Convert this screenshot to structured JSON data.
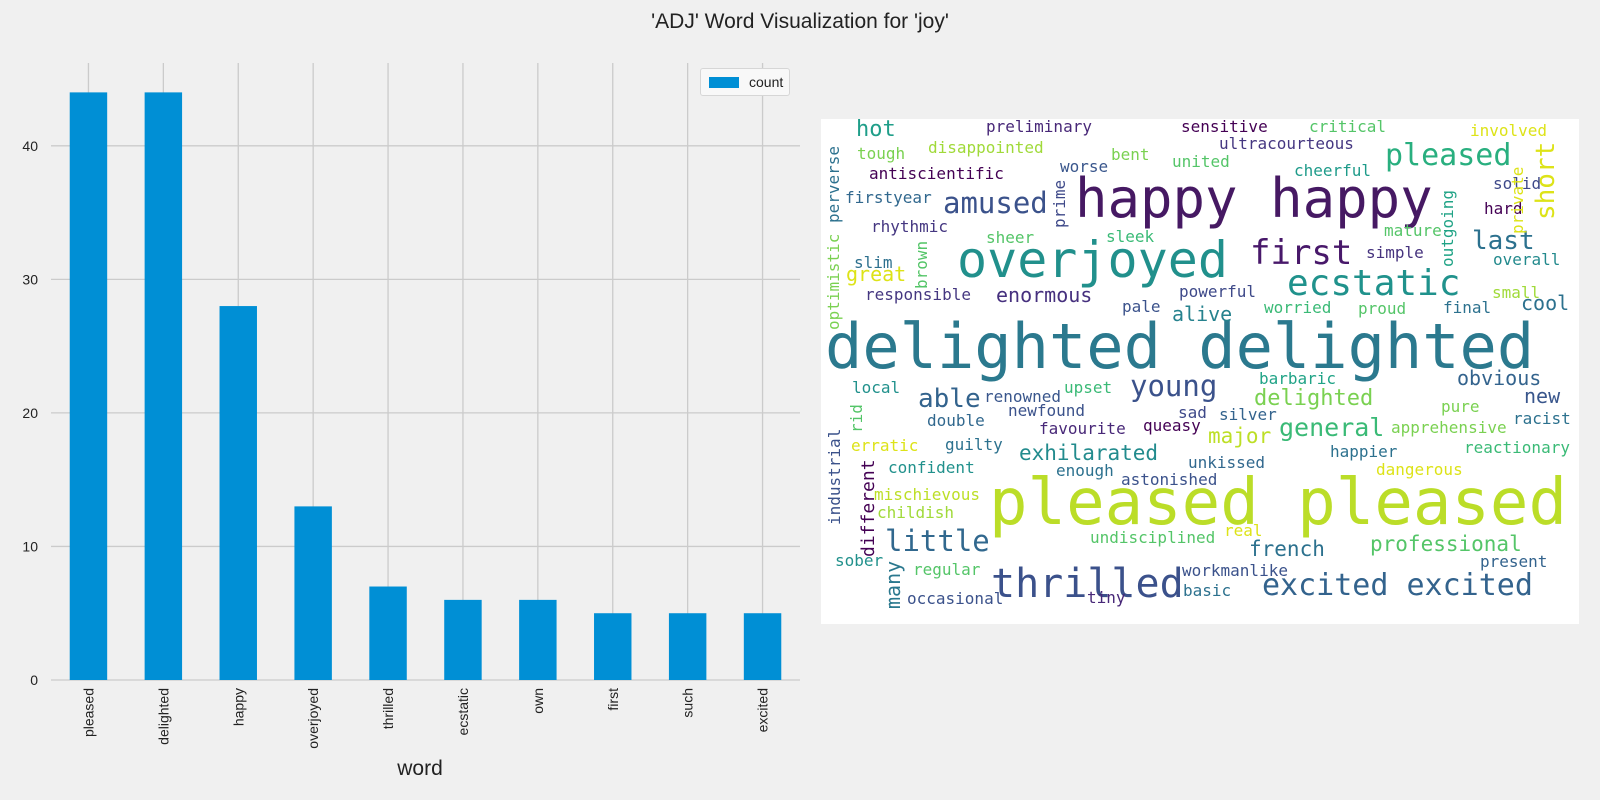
{
  "figure": {
    "title": "'ADJ' Word Visualization for 'joy'"
  },
  "chart_data": [
    {
      "type": "bar",
      "categories": [
        "pleased",
        "delighted",
        "happy",
        "overjoyed",
        "thrilled",
        "ecstatic",
        "own",
        "first",
        "such",
        "excited"
      ],
      "series": [
        {
          "name": "count",
          "values": [
            44,
            44,
            28,
            13,
            7,
            6,
            6,
            5,
            5,
            5
          ],
          "color": "#008fd5"
        }
      ],
      "xlabel": "word",
      "ylabel": "",
      "ylim": [
        0,
        46.2
      ],
      "yticks": [
        0,
        10,
        20,
        30,
        40
      ],
      "grid": true,
      "legend": "top-right"
    }
  ],
  "wordcloud": {
    "words": [
      {
        "text": "delighted delighted",
        "color": "#2b798e",
        "size": 62
      },
      {
        "text": "pleased pleased",
        "color": "#bbdd28",
        "size": 64
      },
      {
        "text": "happy happy",
        "color": "#461963",
        "size": 54
      },
      {
        "text": "overjoyed",
        "color": "#21908c",
        "size": 50
      },
      {
        "text": "thrilled",
        "color": "#3b518b",
        "size": 40
      },
      {
        "text": "ecstatic",
        "color": "#20928c",
        "size": 36
      },
      {
        "text": "excited excited",
        "color": "#33638d",
        "size": 30
      },
      {
        "text": "first",
        "color": "#48186a",
        "size": 34
      },
      {
        "text": "pleased",
        "color": "#29af7f",
        "size": 30
      },
      {
        "text": "amused",
        "color": "#3b528b",
        "size": 29
      },
      {
        "text": "little",
        "color": "#31688e",
        "size": 29
      },
      {
        "text": "young",
        "color": "#3b528b",
        "size": 29
      },
      {
        "text": "last",
        "color": "#2c718e",
        "size": 26
      },
      {
        "text": "short",
        "color": "#dde318",
        "size": 26
      },
      {
        "text": "able",
        "color": "#33638d",
        "size": 26
      },
      {
        "text": "general",
        "color": "#3aba76",
        "size": 25
      },
      {
        "text": "hot",
        "color": "#1f9e89",
        "size": 22
      },
      {
        "text": "enormous",
        "color": "#46307e",
        "size": 20
      },
      {
        "text": "exhilarated",
        "color": "#228b8d",
        "size": 21
      },
      {
        "text": "alive",
        "color": "#26828e",
        "size": 20
      },
      {
        "text": "great",
        "color": "#dde318",
        "size": 20
      },
      {
        "text": "delighted",
        "color": "#7ad151",
        "size": 22
      },
      {
        "text": "professional",
        "color": "#54c568",
        "size": 21
      },
      {
        "text": "french",
        "color": "#2c718e",
        "size": 21
      },
      {
        "text": "major",
        "color": "#bddf26",
        "size": 21
      },
      {
        "text": "obvious",
        "color": "#33638d",
        "size": 20
      },
      {
        "text": "cool",
        "color": "#2c718e",
        "size": 20
      },
      {
        "text": "new",
        "color": "#39568c",
        "size": 20
      },
      {
        "text": "many",
        "color": "#2a788e",
        "size": 20
      },
      {
        "text": "preliminary",
        "color": "#482878",
        "size": 16
      },
      {
        "text": "sensitive",
        "color": "#440154",
        "size": 16
      },
      {
        "text": "critical",
        "color": "#54c568",
        "size": 16
      },
      {
        "text": "involved",
        "color": "#dde318",
        "size": 16
      },
      {
        "text": "ultracourteous",
        "color": "#453781",
        "size": 16
      },
      {
        "text": "tough",
        "color": "#7ad151",
        "size": 16
      },
      {
        "text": "disappointed",
        "color": "#a0da39",
        "size": 16
      },
      {
        "text": "bent",
        "color": "#7ad151",
        "size": 16
      },
      {
        "text": "united",
        "color": "#54c568",
        "size": 16
      },
      {
        "text": "cheerful",
        "color": "#1e9b8a",
        "size": 16
      },
      {
        "text": "worse",
        "color": "#39568c",
        "size": 16
      },
      {
        "text": "antiscientific",
        "color": "#440154",
        "size": 16
      },
      {
        "text": "solid",
        "color": "#3e4989",
        "size": 16
      },
      {
        "text": "firstyear",
        "color": "#31688e",
        "size": 16
      },
      {
        "text": "hard",
        "color": "#440154",
        "size": 16
      },
      {
        "text": "rhythmic",
        "color": "#453781",
        "size": 16
      },
      {
        "text": "sheer",
        "color": "#54c568",
        "size": 16
      },
      {
        "text": "sleek",
        "color": "#3aba76",
        "size": 16
      },
      {
        "text": "mature",
        "color": "#54c568",
        "size": 16
      },
      {
        "text": "slim",
        "color": "#2d708e",
        "size": 16
      },
      {
        "text": "simple",
        "color": "#46337e",
        "size": 16
      },
      {
        "text": "overall",
        "color": "#238a8d",
        "size": 16
      },
      {
        "text": "responsible",
        "color": "#453781",
        "size": 16
      },
      {
        "text": "powerful",
        "color": "#3e4989",
        "size": 16
      },
      {
        "text": "small",
        "color": "#a0da39",
        "size": 16
      },
      {
        "text": "pale",
        "color": "#3b528b",
        "size": 16
      },
      {
        "text": "worried",
        "color": "#3aba76",
        "size": 16
      },
      {
        "text": "proud",
        "color": "#54c568",
        "size": 16
      },
      {
        "text": "final",
        "color": "#2c718e",
        "size": 16
      },
      {
        "text": "local",
        "color": "#21918c",
        "size": 16
      },
      {
        "text": "renowned",
        "color": "#39568c",
        "size": 16
      },
      {
        "text": "upset",
        "color": "#3aba76",
        "size": 16
      },
      {
        "text": "barbaric",
        "color": "#20a386",
        "size": 16
      },
      {
        "text": "newfound",
        "color": "#3b528b",
        "size": 16
      },
      {
        "text": "sad",
        "color": "#3e4989",
        "size": 16
      },
      {
        "text": "silver",
        "color": "#33638d",
        "size": 16
      },
      {
        "text": "pure",
        "color": "#7ad151",
        "size": 16
      },
      {
        "text": "racist",
        "color": "#2c718e",
        "size": 16
      },
      {
        "text": "double",
        "color": "#31688e",
        "size": 16
      },
      {
        "text": "favourite",
        "color": "#482878",
        "size": 16
      },
      {
        "text": "queasy",
        "color": "#440154",
        "size": 16
      },
      {
        "text": "apprehensive",
        "color": "#7ad151",
        "size": 16
      },
      {
        "text": "reactionary",
        "color": "#3aba76",
        "size": 16
      },
      {
        "text": "erratic",
        "color": "#dde318",
        "size": 16
      },
      {
        "text": "guilty",
        "color": "#2c718e",
        "size": 16
      },
      {
        "text": "happier",
        "color": "#2c718e",
        "size": 16
      },
      {
        "text": "confident",
        "color": "#21918c",
        "size": 16
      },
      {
        "text": "enough",
        "color": "#2c718e",
        "size": 16
      },
      {
        "text": "unkissed",
        "color": "#31688e",
        "size": 16
      },
      {
        "text": "dangerous",
        "color": "#dde318",
        "size": 16
      },
      {
        "text": "astonished",
        "color": "#3b528b",
        "size": 16
      },
      {
        "text": "mischievous",
        "color": "#bddf26",
        "size": 16
      },
      {
        "text": "childish",
        "color": "#a0da39",
        "size": 16
      },
      {
        "text": "real",
        "color": "#dde318",
        "size": 16
      },
      {
        "text": "undisciplined",
        "color": "#54c568",
        "size": 16
      },
      {
        "text": "sober",
        "color": "#21918c",
        "size": 16
      },
      {
        "text": "present",
        "color": "#33638d",
        "size": 16
      },
      {
        "text": "regular",
        "color": "#54c568",
        "size": 16
      },
      {
        "text": "workmanlike",
        "color": "#3b528b",
        "size": 16
      },
      {
        "text": "basic",
        "color": "#2c718e",
        "size": 16
      },
      {
        "text": "occasional",
        "color": "#3b528b",
        "size": 16
      },
      {
        "text": "tiny",
        "color": "#482878",
        "size": 16
      },
      {
        "text": "perverse",
        "color": "#2c718e",
        "size": 16
      },
      {
        "text": "optimistic",
        "color": "#7ad151",
        "size": 16
      },
      {
        "text": "brown",
        "color": "#54c568",
        "size": 16
      },
      {
        "text": "prime",
        "color": "#3e4989",
        "size": 16
      },
      {
        "text": "outgoing",
        "color": "#20a386",
        "size": 16
      },
      {
        "text": "private",
        "color": "#dde318",
        "size": 16
      },
      {
        "text": "rid",
        "color": "#54c568",
        "size": 16
      },
      {
        "text": "industrial",
        "color": "#3b528b",
        "size": 16
      },
      {
        "text": "different",
        "color": "#440154",
        "size": 18
      }
    ]
  }
}
